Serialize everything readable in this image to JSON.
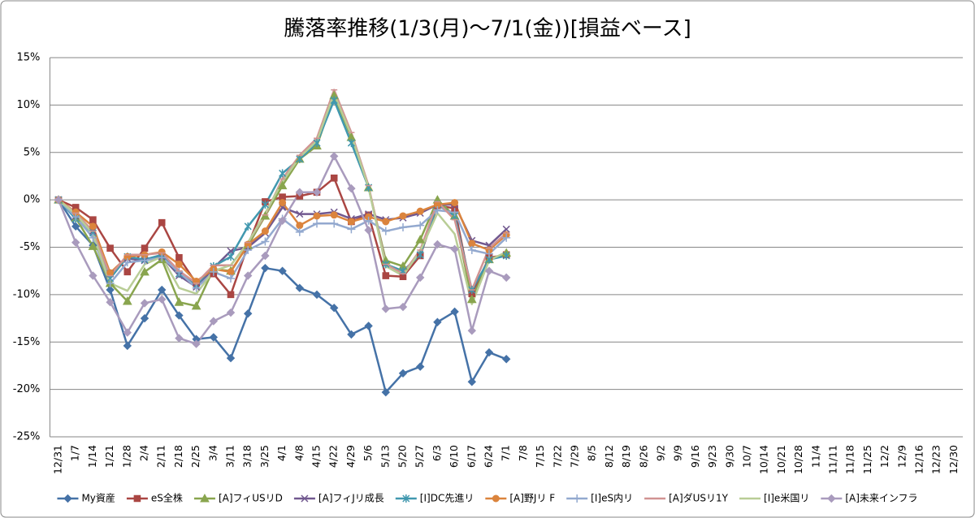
{
  "chart_data": {
    "type": "line",
    "title": "騰落率推移(1/3(月)〜7/1(金))[損益ベース]",
    "categories": [
      "12/31",
      "1/7",
      "1/14",
      "1/21",
      "1/28",
      "2/4",
      "2/11",
      "2/18",
      "2/25",
      "3/4",
      "3/11",
      "3/18",
      "3/25",
      "4/1",
      "4/8",
      "4/15",
      "4/22",
      "4/29",
      "5/6",
      "5/13",
      "5/20",
      "5/27",
      "6/3",
      "6/10",
      "6/17",
      "6/24",
      "7/1",
      "7/8",
      "7/15",
      "7/22",
      "7/29",
      "8/5",
      "8/12",
      "8/19",
      "8/26",
      "9/2",
      "9/9",
      "9/16",
      "9/23",
      "9/30",
      "10/7",
      "10/14",
      "10/21",
      "10/28",
      "11/4",
      "11/11",
      "11/18",
      "11/25",
      "12/2",
      "12/9",
      "12/16",
      "12/23",
      "12/30"
    ],
    "ylim": [
      -25,
      15
    ],
    "yticks": [
      {
        "value": -25,
        "label": "-25%"
      },
      {
        "value": -20,
        "label": "-20%"
      },
      {
        "value": -15,
        "label": "-15%"
      },
      {
        "value": -10,
        "label": "-10%"
      },
      {
        "value": -5,
        "label": "-5%"
      },
      {
        "value": 0,
        "label": "0%"
      },
      {
        "value": 5,
        "label": "5%"
      },
      {
        "value": 10,
        "label": "10%"
      },
      {
        "value": 15,
        "label": "15%"
      }
    ],
    "grid": true,
    "legend": "bottom",
    "series": [
      {
        "name": "My資産",
        "color": "#4572a7",
        "marker": "diamond",
        "values": [
          0,
          -2.8,
          -4.8,
          -9.5,
          -15.4,
          -12.5,
          -9.5,
          -12.2,
          -14.7,
          -14.5,
          -16.7,
          -12.0,
          -7.2,
          -7.5,
          -9.3,
          -10.0,
          -11.4,
          -14.2,
          -13.3,
          -20.3,
          -18.3,
          -17.6,
          -12.9,
          -11.8,
          -19.2,
          -16.1,
          -16.8,
          null,
          null,
          null,
          null,
          null,
          null,
          null,
          null,
          null,
          null,
          null,
          null,
          null,
          null,
          null,
          null,
          null,
          null,
          null,
          null,
          null,
          null,
          null,
          null,
          null,
          null
        ]
      },
      {
        "name": "eS全株",
        "color": "#aa4643",
        "marker": "square",
        "values": [
          0,
          -0.8,
          -2.1,
          -5.1,
          -7.6,
          -5.1,
          -2.4,
          -6.1,
          -8.8,
          -7.8,
          -10.0,
          -4.8,
          -0.2,
          0.3,
          0.4,
          0.8,
          2.3,
          -2.3,
          -1.6,
          -8.0,
          -8.1,
          -5.9,
          -0.6,
          -0.9,
          -9.9,
          -6.1,
          -5.8,
          null,
          null,
          null,
          null,
          null,
          null,
          null,
          null,
          null,
          null,
          null,
          null,
          null,
          null,
          null,
          null,
          null,
          null,
          null,
          null,
          null,
          null,
          null,
          null,
          null,
          null
        ]
      },
      {
        "name": "[A]フィUSリD",
        "color": "#89a54e",
        "marker": "triangle",
        "values": [
          0,
          -1.9,
          -4.9,
          -8.8,
          -10.7,
          -7.6,
          -6.3,
          -10.8,
          -11.2,
          -7.3,
          -7.5,
          -4.8,
          -1.7,
          1.5,
          4.3,
          5.7,
          11.0,
          6.6,
          1.3,
          -6.4,
          -7.0,
          -4.2,
          0.0,
          -1.7,
          -10.5,
          -6.3,
          -5.6,
          null,
          null,
          null,
          null,
          null,
          null,
          null,
          null,
          null,
          null,
          null,
          null,
          null,
          null,
          null,
          null,
          null,
          null,
          null,
          null,
          null,
          null,
          null,
          null,
          null,
          null
        ]
      },
      {
        "name": "[A]フィJリ成長",
        "color": "#71588f",
        "marker": "x",
        "values": [
          0,
          -1.7,
          -3.3,
          -7.8,
          -6.2,
          -6.4,
          -6.0,
          -8.0,
          -9.2,
          -7.2,
          -5.4,
          -5.0,
          -3.5,
          -0.8,
          -1.5,
          -1.5,
          -1.3,
          -2.0,
          -1.5,
          -2.1,
          -1.9,
          -1.4,
          -0.5,
          -0.5,
          -4.3,
          -4.8,
          -3.1,
          null,
          null,
          null,
          null,
          null,
          null,
          null,
          null,
          null,
          null,
          null,
          null,
          null,
          null,
          null,
          null,
          null,
          null,
          null,
          null,
          null,
          null,
          null,
          null,
          null,
          null
        ]
      },
      {
        "name": "[I]DC先進リ",
        "color": "#4198af",
        "marker": "asterisk",
        "values": [
          0,
          -2.0,
          -3.5,
          -8.3,
          -6.0,
          -6.3,
          -5.8,
          -7.8,
          -9.0,
          -7.0,
          -6.0,
          -2.8,
          -0.5,
          2.8,
          4.3,
          6.0,
          10.5,
          6.0,
          1.3,
          -6.8,
          -7.5,
          -5.8,
          -0.5,
          -1.7,
          -9.5,
          -6.3,
          -5.9,
          null,
          null,
          null,
          null,
          null,
          null,
          null,
          null,
          null,
          null,
          null,
          null,
          null,
          null,
          null,
          null,
          null,
          null,
          null,
          null,
          null,
          null,
          null,
          null,
          null,
          null
        ]
      },
      {
        "name": "[A]野Jリ F",
        "color": "#db843d",
        "marker": "circle",
        "values": [
          0,
          -1.3,
          -2.8,
          -7.7,
          -6.0,
          -5.8,
          -5.5,
          -6.8,
          -8.6,
          -7.3,
          -7.6,
          -4.7,
          -3.3,
          -0.3,
          -2.7,
          -1.7,
          -1.6,
          -2.3,
          -1.8,
          -2.3,
          -1.7,
          -1.2,
          -0.5,
          -0.3,
          -4.6,
          -5.3,
          -3.7,
          null,
          null,
          null,
          null,
          null,
          null,
          null,
          null,
          null,
          null,
          null,
          null,
          null,
          null,
          null,
          null,
          null,
          null,
          null,
          null,
          null,
          null,
          null,
          null,
          null,
          null
        ]
      },
      {
        "name": "[I]eS内リ",
        "color": "#93a9cf",
        "marker": "plus",
        "values": [
          0,
          -1.8,
          -4.0,
          -8.8,
          -6.6,
          -6.4,
          -6.1,
          -7.6,
          -9.3,
          -7.6,
          -8.3,
          -5.3,
          -4.4,
          -2.0,
          -3.4,
          -2.5,
          -2.5,
          -3.1,
          -2.2,
          -3.3,
          -2.9,
          -2.7,
          -1.1,
          -1.3,
          -5.3,
          -5.7,
          -4.0,
          null,
          null,
          null,
          null,
          null,
          null,
          null,
          null,
          null,
          null,
          null,
          null,
          null,
          null,
          null,
          null,
          null,
          null,
          null,
          null,
          null,
          null,
          null,
          null,
          null,
          null
        ]
      },
      {
        "name": "[A]ダUSリ1Y",
        "color": "#d19392",
        "marker": "dash",
        "values": [
          0,
          -1.4,
          -3.3,
          -8.0,
          -5.8,
          -5.8,
          -5.6,
          -7.5,
          -8.8,
          -6.9,
          -6.9,
          -4.5,
          -1.6,
          2.2,
          4.7,
          6.5,
          11.6,
          7.1,
          1.5,
          -6.8,
          -7.8,
          -5.3,
          -0.2,
          -2.1,
          -9.5,
          -5.1,
          -3.5,
          null,
          null,
          null,
          null,
          null,
          null,
          null,
          null,
          null,
          null,
          null,
          null,
          null,
          null,
          null,
          null,
          null,
          null,
          null,
          null,
          null,
          null,
          null,
          null,
          null,
          null
        ]
      },
      {
        "name": "[I]e米国リ",
        "color": "#b9cd96",
        "marker": "none",
        "values": [
          0,
          -1.5,
          -3.6,
          -8.8,
          -9.6,
          -6.8,
          -6.0,
          -9.3,
          -9.9,
          -7.5,
          -6.9,
          -4.5,
          -1.4,
          1.9,
          4.5,
          6.2,
          11.2,
          6.8,
          1.3,
          -7.0,
          -8.0,
          -5.4,
          -1.4,
          -3.6,
          -11.0,
          -6.4,
          -5.5,
          null,
          null,
          null,
          null,
          null,
          null,
          null,
          null,
          null,
          null,
          null,
          null,
          null,
          null,
          null,
          null,
          null,
          null,
          null,
          null,
          null,
          null,
          null,
          null,
          null,
          null
        ]
      },
      {
        "name": "[A]未来インフラ",
        "color": "#a99bbd",
        "marker": "diamond",
        "values": [
          0,
          -4.5,
          -8.0,
          -10.8,
          -14.0,
          -10.9,
          -10.5,
          -14.6,
          -15.2,
          -12.8,
          -11.9,
          -8.0,
          -5.9,
          -2.2,
          0.8,
          0.8,
          4.6,
          1.2,
          -3.2,
          -11.5,
          -11.3,
          -8.2,
          -4.7,
          -5.2,
          -13.8,
          -7.5,
          -8.2,
          null,
          null,
          null,
          null,
          null,
          null,
          null,
          null,
          null,
          null,
          null,
          null,
          null,
          null,
          null,
          null,
          null,
          null,
          null,
          null,
          null,
          null,
          null,
          null,
          null,
          null
        ]
      }
    ]
  }
}
